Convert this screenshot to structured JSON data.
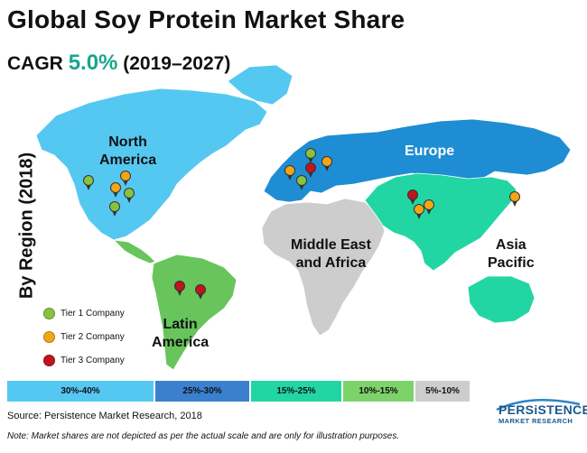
{
  "title": "Global Soy Protein Market Share",
  "cagr": {
    "prefix": "CAGR",
    "value": "5.0%",
    "period": "(2019–2027)"
  },
  "y_axis_label": "By Region (2018)",
  "regions": [
    {
      "name": "North America",
      "lines": [
        "North",
        "America"
      ],
      "share_band": "30%-40%",
      "color": "#55c8f2"
    },
    {
      "name": "Europe",
      "lines": [
        "Europe"
      ],
      "share_band": "25%-30%",
      "color": "#1f8dd3"
    },
    {
      "name": "Asia Pacific",
      "lines": [
        "Asia",
        "Pacific"
      ],
      "share_band": "15%-25%",
      "color": "#22d6a4"
    },
    {
      "name": "Latin America",
      "lines": [
        "Latin",
        "America"
      ],
      "share_band": "10%-15%",
      "color": "#67c55c"
    },
    {
      "name": "Middle East and Africa",
      "lines": [
        "Middle East",
        "and Africa"
      ],
      "share_band": "5%-10%",
      "color": "#cdcdcd"
    }
  ],
  "legend": [
    {
      "label": "Tier 1 Company",
      "color": "#86c440"
    },
    {
      "label": "Tier 2 Company",
      "color": "#f2a516"
    },
    {
      "label": "Tier 3 Company",
      "color": "#c0141e"
    }
  ],
  "scale_bar": [
    {
      "label": "30%-40%",
      "color": "#55c8f2"
    },
    {
      "label": "25%-30%",
      "color": "#3a80cf"
    },
    {
      "label": "15%-25%",
      "color": "#22d6a4"
    },
    {
      "label": "10%-15%",
      "color": "#7dd36a"
    },
    {
      "label": "5%-10%",
      "color": "#cdcdcd"
    }
  ],
  "source": "Source: Persistence Market Research, 2018",
  "note": "Note: Market shares are not depicted as per the actual scale and are only for illustration purposes.",
  "logo": {
    "brand": "PERSiSTENCE",
    "sub": "MARKET RESEARCH"
  }
}
